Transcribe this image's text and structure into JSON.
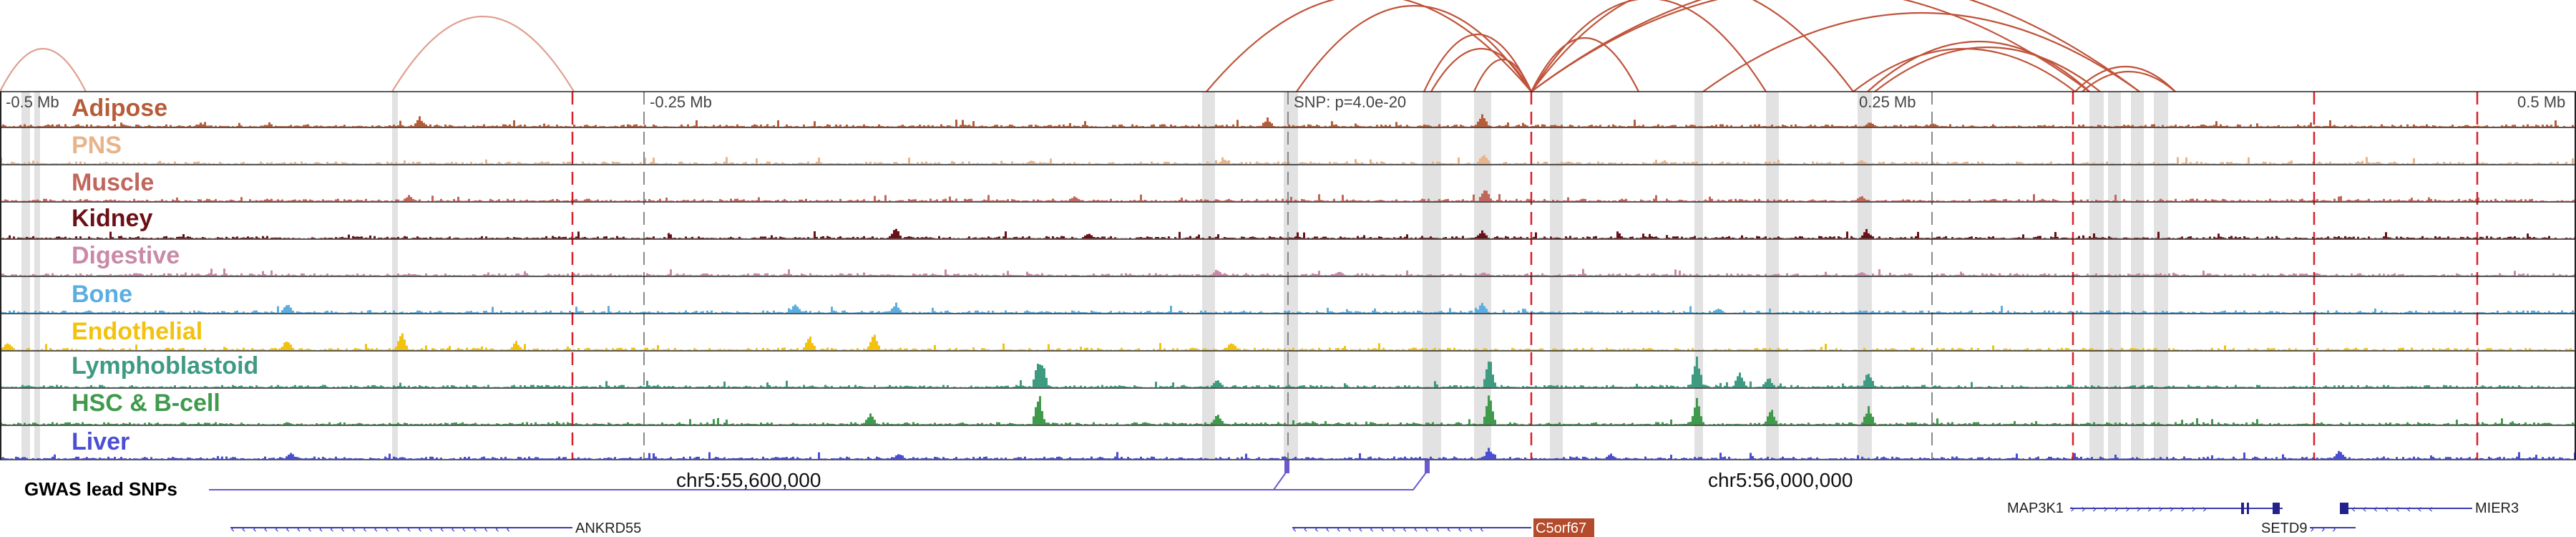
{
  "scale_labels": [
    "-0.5 Mb",
    "-0.25 Mb",
    "0.25 Mb",
    "0.5 Mb"
  ],
  "snp_label": "SNP: p=4.0e-20",
  "coordinates": [
    "chr5:55,600,000",
    "chr5:56,000,000"
  ],
  "gwas_label": "GWAS lead SNPs",
  "tracks": [
    {
      "name": "Adipose",
      "color": "#b85c38"
    },
    {
      "name": "PNS",
      "color": "#e8b48a"
    },
    {
      "name": "Muscle",
      "color": "#c0665c"
    },
    {
      "name": "Kidney",
      "color": "#6b1016"
    },
    {
      "name": "Digestive",
      "color": "#c989a8"
    },
    {
      "name": "Bone",
      "color": "#5aaee0"
    },
    {
      "name": "Endothelial",
      "color": "#f2c20e"
    },
    {
      "name": "Lymphoblastoid",
      "color": "#3f9a82"
    },
    {
      "name": "HSC & B-cell",
      "color": "#3f9a4c"
    },
    {
      "name": "Liver",
      "color": "#4a4ed4"
    }
  ],
  "genes": [
    {
      "name": "ANKRD55",
      "strand": "-",
      "highlight": false
    },
    {
      "name": "C5orf67",
      "strand": "-",
      "highlight": true
    },
    {
      "name": "MAP3K1",
      "strand": "+",
      "highlight": false
    },
    {
      "name": "SETD9",
      "strand": "+",
      "highlight": false
    },
    {
      "name": "MIER3",
      "strand": "-",
      "highlight": false
    }
  ],
  "colors": {
    "arc": "#c0533a",
    "arc_light": "#e0a090",
    "red_dash": "#d9202a",
    "gray_dash": "#888888",
    "highlight_band": "#e2e2e2",
    "gwas": "#6a5acd",
    "gene": "#3a3ab0",
    "highlight_gene_bg": "#b34b2c"
  }
}
